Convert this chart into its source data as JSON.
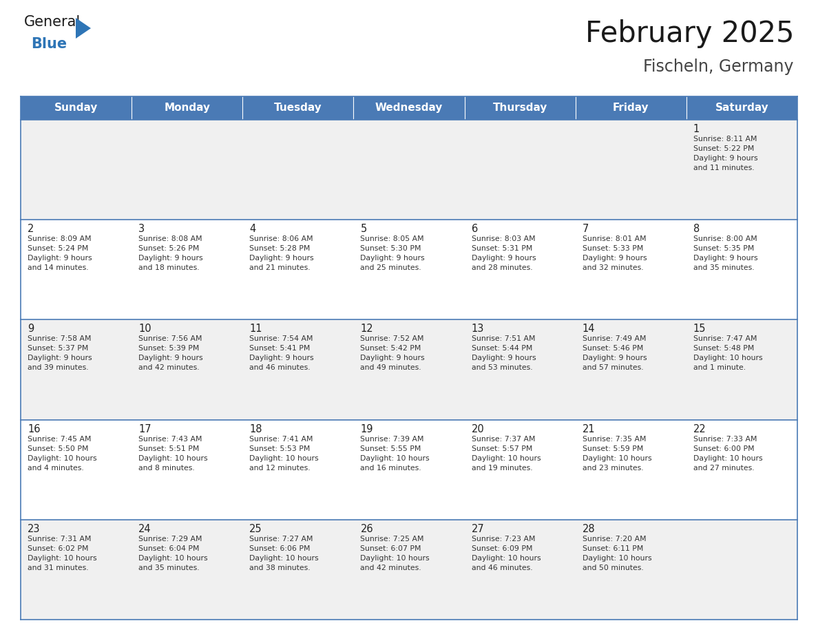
{
  "title": "February 2025",
  "subtitle": "Fischeln, Germany",
  "days_of_week": [
    "Sunday",
    "Monday",
    "Tuesday",
    "Wednesday",
    "Thursday",
    "Friday",
    "Saturday"
  ],
  "header_bg": "#4a7ab5",
  "header_text": "#FFFFFF",
  "row_bg_light": "#f0f0f0",
  "row_bg_white": "#FFFFFF",
  "cell_text_color": "#333333",
  "day_num_color": "#222222",
  "border_color": "#4a7ab5",
  "title_color": "#1a1a1a",
  "subtitle_color": "#444444",
  "logo_general_color": "#1a1a1a",
  "logo_blue_color": "#2E75B6",
  "calendar_data": [
    [
      {
        "day": null,
        "info": null
      },
      {
        "day": null,
        "info": null
      },
      {
        "day": null,
        "info": null
      },
      {
        "day": null,
        "info": null
      },
      {
        "day": null,
        "info": null
      },
      {
        "day": null,
        "info": null
      },
      {
        "day": 1,
        "info": "Sunrise: 8:11 AM\nSunset: 5:22 PM\nDaylight: 9 hours\nand 11 minutes."
      }
    ],
    [
      {
        "day": 2,
        "info": "Sunrise: 8:09 AM\nSunset: 5:24 PM\nDaylight: 9 hours\nand 14 minutes."
      },
      {
        "day": 3,
        "info": "Sunrise: 8:08 AM\nSunset: 5:26 PM\nDaylight: 9 hours\nand 18 minutes."
      },
      {
        "day": 4,
        "info": "Sunrise: 8:06 AM\nSunset: 5:28 PM\nDaylight: 9 hours\nand 21 minutes."
      },
      {
        "day": 5,
        "info": "Sunrise: 8:05 AM\nSunset: 5:30 PM\nDaylight: 9 hours\nand 25 minutes."
      },
      {
        "day": 6,
        "info": "Sunrise: 8:03 AM\nSunset: 5:31 PM\nDaylight: 9 hours\nand 28 minutes."
      },
      {
        "day": 7,
        "info": "Sunrise: 8:01 AM\nSunset: 5:33 PM\nDaylight: 9 hours\nand 32 minutes."
      },
      {
        "day": 8,
        "info": "Sunrise: 8:00 AM\nSunset: 5:35 PM\nDaylight: 9 hours\nand 35 minutes."
      }
    ],
    [
      {
        "day": 9,
        "info": "Sunrise: 7:58 AM\nSunset: 5:37 PM\nDaylight: 9 hours\nand 39 minutes."
      },
      {
        "day": 10,
        "info": "Sunrise: 7:56 AM\nSunset: 5:39 PM\nDaylight: 9 hours\nand 42 minutes."
      },
      {
        "day": 11,
        "info": "Sunrise: 7:54 AM\nSunset: 5:41 PM\nDaylight: 9 hours\nand 46 minutes."
      },
      {
        "day": 12,
        "info": "Sunrise: 7:52 AM\nSunset: 5:42 PM\nDaylight: 9 hours\nand 49 minutes."
      },
      {
        "day": 13,
        "info": "Sunrise: 7:51 AM\nSunset: 5:44 PM\nDaylight: 9 hours\nand 53 minutes."
      },
      {
        "day": 14,
        "info": "Sunrise: 7:49 AM\nSunset: 5:46 PM\nDaylight: 9 hours\nand 57 minutes."
      },
      {
        "day": 15,
        "info": "Sunrise: 7:47 AM\nSunset: 5:48 PM\nDaylight: 10 hours\nand 1 minute."
      }
    ],
    [
      {
        "day": 16,
        "info": "Sunrise: 7:45 AM\nSunset: 5:50 PM\nDaylight: 10 hours\nand 4 minutes."
      },
      {
        "day": 17,
        "info": "Sunrise: 7:43 AM\nSunset: 5:51 PM\nDaylight: 10 hours\nand 8 minutes."
      },
      {
        "day": 18,
        "info": "Sunrise: 7:41 AM\nSunset: 5:53 PM\nDaylight: 10 hours\nand 12 minutes."
      },
      {
        "day": 19,
        "info": "Sunrise: 7:39 AM\nSunset: 5:55 PM\nDaylight: 10 hours\nand 16 minutes."
      },
      {
        "day": 20,
        "info": "Sunrise: 7:37 AM\nSunset: 5:57 PM\nDaylight: 10 hours\nand 19 minutes."
      },
      {
        "day": 21,
        "info": "Sunrise: 7:35 AM\nSunset: 5:59 PM\nDaylight: 10 hours\nand 23 minutes."
      },
      {
        "day": 22,
        "info": "Sunrise: 7:33 AM\nSunset: 6:00 PM\nDaylight: 10 hours\nand 27 minutes."
      }
    ],
    [
      {
        "day": 23,
        "info": "Sunrise: 7:31 AM\nSunset: 6:02 PM\nDaylight: 10 hours\nand 31 minutes."
      },
      {
        "day": 24,
        "info": "Sunrise: 7:29 AM\nSunset: 6:04 PM\nDaylight: 10 hours\nand 35 minutes."
      },
      {
        "day": 25,
        "info": "Sunrise: 7:27 AM\nSunset: 6:06 PM\nDaylight: 10 hours\nand 38 minutes."
      },
      {
        "day": 26,
        "info": "Sunrise: 7:25 AM\nSunset: 6:07 PM\nDaylight: 10 hours\nand 42 minutes."
      },
      {
        "day": 27,
        "info": "Sunrise: 7:23 AM\nSunset: 6:09 PM\nDaylight: 10 hours\nand 46 minutes."
      },
      {
        "day": 28,
        "info": "Sunrise: 7:20 AM\nSunset: 6:11 PM\nDaylight: 10 hours\nand 50 minutes."
      },
      {
        "day": null,
        "info": null
      }
    ]
  ]
}
